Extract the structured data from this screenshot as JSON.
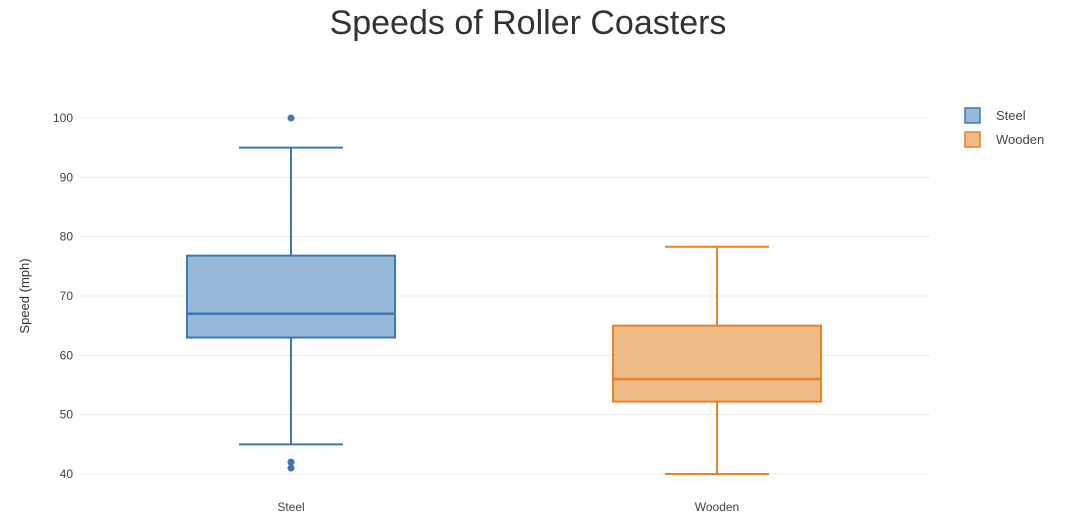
{
  "chart_data": {
    "type": "box",
    "title": "Speeds of Roller Coasters",
    "xlabel": "",
    "ylabel": "Speed (mph)",
    "ylim": [
      38,
      102
    ],
    "yticks": [
      40,
      50,
      60,
      70,
      80,
      90,
      100
    ],
    "grid": true,
    "legend_position": "top-right",
    "categories": [
      "Steel",
      "Wooden"
    ],
    "series": [
      {
        "name": "Steel",
        "color": "#3e78b4",
        "fill": "#97b9d9",
        "whisker_low": 45,
        "q1": 63,
        "median": 67,
        "q3": 76.8,
        "whisker_high": 95,
        "outliers": [
          100,
          42,
          41
        ]
      },
      {
        "name": "Wooden",
        "color": "#e8822a",
        "fill": "#f0bc85",
        "whisker_low": 40,
        "q1": 52.2,
        "median": 56,
        "q3": 65,
        "whisker_high": 78.3,
        "outliers": []
      }
    ]
  }
}
